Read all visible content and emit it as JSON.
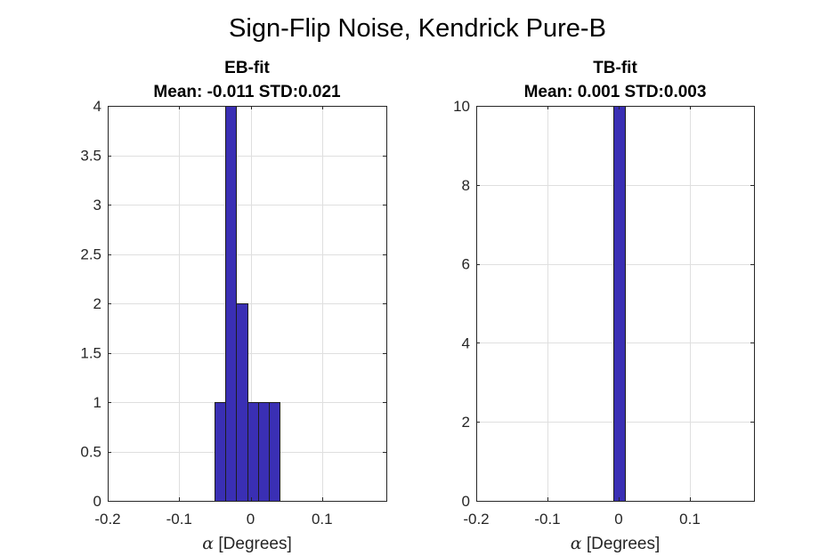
{
  "figure": {
    "suptitle": "Sign-Flip Noise, Kendrick Pure-B"
  },
  "colors": {
    "bar_fill": "#3a2fb4",
    "bar_edge": "#1c1c1c",
    "grid": "#dfdfdf",
    "axis": "#262626"
  },
  "chart_data": [
    {
      "type": "bar",
      "subtype": "histogram",
      "title_lines": [
        "EB-fit",
        "Mean: -0.011 STD:0.021"
      ],
      "xlabel_symbol": "α",
      "xlabel_text": " [Degrees]",
      "xlim": [
        -0.2,
        0.19
      ],
      "ylim": [
        0,
        4
      ],
      "xticks": [
        -0.2,
        -0.1,
        0,
        0.1
      ],
      "xtick_labels": [
        "-0.2",
        "-0.1",
        "0",
        "0.1"
      ],
      "yticks": [
        0,
        0.5,
        1,
        1.5,
        2,
        2.5,
        3,
        3.5,
        4
      ],
      "ytick_labels": [
        "0",
        "0.5",
        "1",
        "1.5",
        "2",
        "2.5",
        "3",
        "3.5",
        "4"
      ],
      "grid": true,
      "bins": [
        {
          "x0": -0.05,
          "x1": -0.035,
          "count": 1
        },
        {
          "x0": -0.035,
          "x1": -0.02,
          "count": 4
        },
        {
          "x0": -0.02,
          "x1": -0.005,
          "count": 2
        },
        {
          "x0": -0.005,
          "x1": 0.01,
          "count": 1
        },
        {
          "x0": 0.01,
          "x1": 0.025,
          "count": 1
        },
        {
          "x0": 0.025,
          "x1": 0.04,
          "count": 1
        }
      ]
    },
    {
      "type": "bar",
      "subtype": "histogram",
      "title_lines": [
        "TB-fit",
        "Mean: 0.001 STD:0.003"
      ],
      "xlabel_symbol": "α",
      "xlabel_text": " [Degrees]",
      "xlim": [
        -0.2,
        0.19
      ],
      "ylim": [
        0,
        10
      ],
      "xticks": [
        -0.2,
        -0.1,
        0,
        0.1
      ],
      "xtick_labels": [
        "-0.2",
        "-0.1",
        "0",
        "0.1"
      ],
      "yticks": [
        0,
        2,
        4,
        6,
        8,
        10
      ],
      "ytick_labels": [
        "0",
        "2",
        "4",
        "6",
        "8",
        "10"
      ],
      "grid": true,
      "bins": [
        {
          "x0": -0.0075,
          "x1": 0.0085,
          "count": 10
        }
      ]
    }
  ]
}
